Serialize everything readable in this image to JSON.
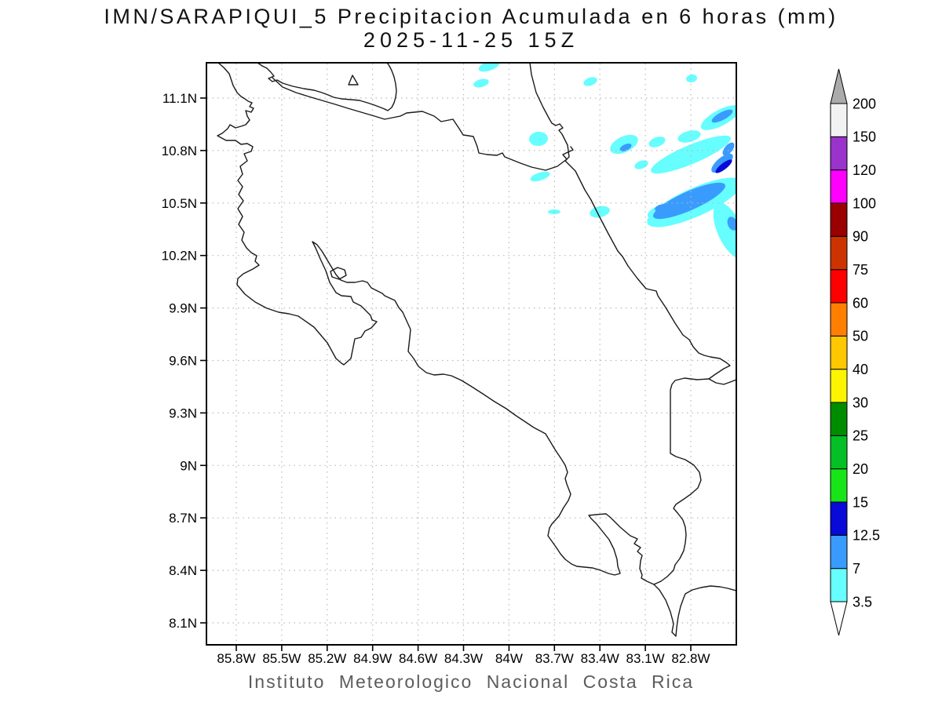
{
  "title": "IMN/SARAPIQUI_5 Precipitacion Acumulada en 6 horas (mm)",
  "subtitle": "2025-11-25 15Z",
  "caption": "Instituto Meteorologico Nacional Costa Rica",
  "chart_data": {
    "type": "filled_contour_map",
    "source_model": "IMN/SARAPIQUI_5",
    "variable": "Precipitacion Acumulada en 6 horas",
    "units": "mm",
    "valid_time": "2025-11-25 15Z",
    "map_region": "Costa Rica",
    "grid": "dotted graticule every 0.3 degrees",
    "x_ticks": [
      "85.8W",
      "85.5W",
      "85.2W",
      "84.9W",
      "84.6W",
      "84.3W",
      "84W",
      "83.7W",
      "83.4W",
      "83.1W",
      "82.8W"
    ],
    "y_ticks": [
      "11.1N",
      "10.8N",
      "10.5N",
      "10.2N",
      "9.9N",
      "9.6N",
      "9.3N",
      "9N",
      "8.7N",
      "8.4N",
      "8.1N"
    ],
    "colorbar": {
      "orientation": "vertical-right",
      "levels": [
        3.5,
        7,
        12.5,
        15,
        20,
        25,
        30,
        40,
        50,
        60,
        75,
        90,
        100,
        120,
        150,
        200
      ],
      "cell_colors": [
        "#66FEFE",
        "#3A9BFE",
        "#0909D8",
        "#17E517",
        "#05BF26",
        "#008C00",
        "#FCF400",
        "#FFC800",
        "#FF8000",
        "#FE0000",
        "#CC3300",
        "#9A0000",
        "#FF00FF",
        "#9933CC",
        "#F2F2F2"
      ],
      "under_arrow_color": "#FFFFFF",
      "over_arrow_color": "#ABABAB"
    },
    "precip_features": [
      {
        "location": "Caribbean offshore, NE corner of map (~10.4-10.9N, 82.5-83.3W)",
        "description": "SW-NE oriented rain bands",
        "range_mm": "3.5-15",
        "max_band_mm": "12.5-15 (small dark-blue core near 10.7N 82.6W)"
      },
      {
        "location": "near San Juan delta / NE coast (~10.6-11.0N, 83.5-83.9W)",
        "description": "small patches",
        "range_mm": "3.5-7"
      },
      {
        "location": "along northern border / Lake Nicaragua area (~11.2N, 84.1-84.4W)",
        "description": "scattered small patches",
        "range_mm": "3.5-7"
      }
    ]
  }
}
